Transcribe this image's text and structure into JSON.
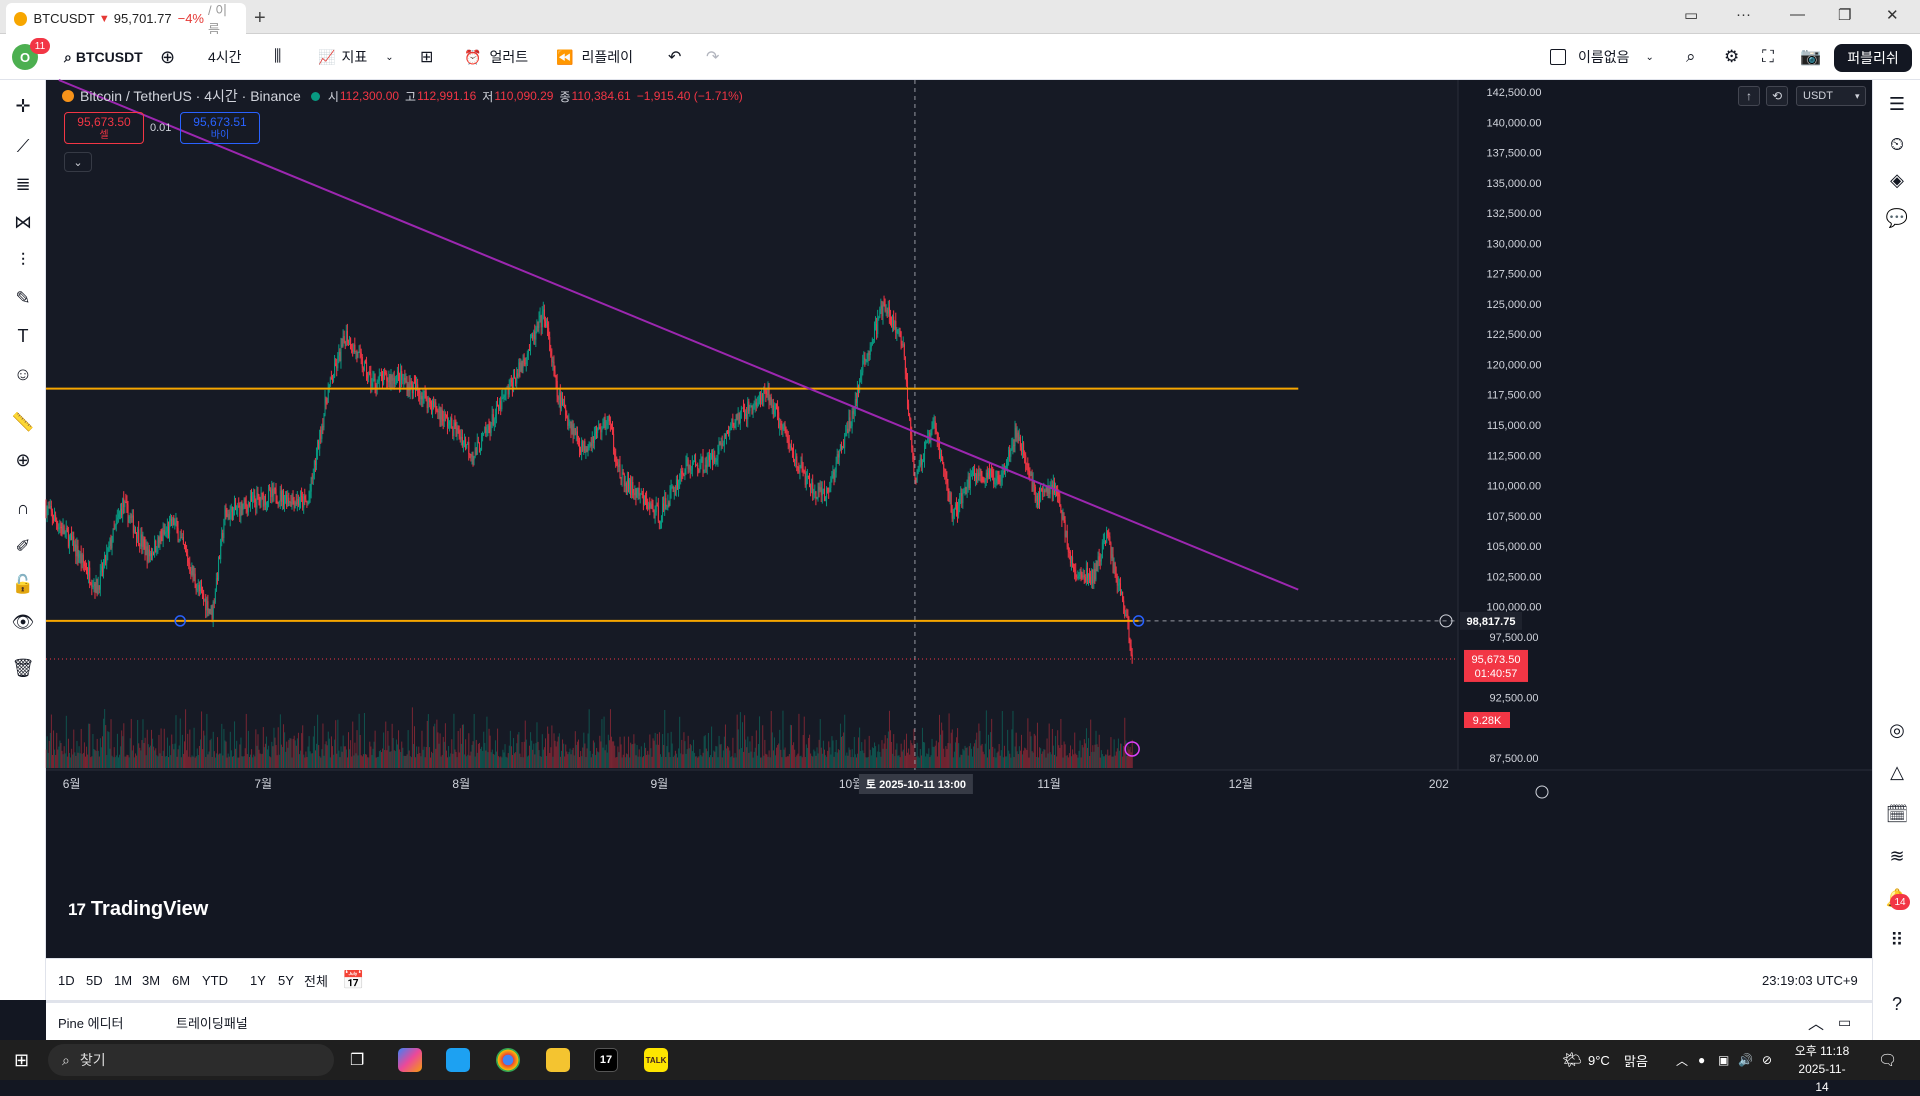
{
  "browser_tab": {
    "symbol": "BTCUSDT",
    "price": "95,701.77",
    "change": "−4%",
    "rest": "/ 이름"
  },
  "toolbar": {
    "notifications_count": "11",
    "symbol": "BTCUSDT",
    "interval": "4시간",
    "indicators_label": "지표",
    "alerts_label": "얼러트",
    "replay_label": "리플레이",
    "layout_name": "이름없음",
    "publish_label": "퍼블리쉬"
  },
  "legend": {
    "title": "Bitcoin / TetherUS · 4시간 · Binance",
    "open_label": "시",
    "open": "112,300.00",
    "high_label": "고",
    "high": "112,991.16",
    "low_label": "저",
    "low": "110,090.29",
    "close_label": "종",
    "close": "110,384.61",
    "change": "−1,915.40 (−1.71%)"
  },
  "trade": {
    "sell_price": "95,673.50",
    "sell_label": "셀",
    "spread": "0.01",
    "buy_price": "95,673.51",
    "buy_label": "바이"
  },
  "currency": "USDT",
  "price_axis": {
    "ticks": [
      "142,500.00",
      "140,000.00",
      "137,500.00",
      "135,000.00",
      "132,500.00",
      "130,000.00",
      "127,500.00",
      "125,000.00",
      "122,500.00",
      "120,000.00",
      "117,500.00",
      "115,000.00",
      "112,500.00",
      "110,000.00",
      "107,500.00",
      "105,000.00",
      "102,500.00",
      "100,000.00",
      "97,500.00",
      "92,500.00",
      "87,500.00"
    ],
    "hline_label": "98,817.75",
    "last_price": "95,673.50",
    "countdown": "01:40:57",
    "volume_label": "9.28K"
  },
  "time_axis": {
    "ticks": [
      "6월",
      "7월",
      "8월",
      "9월",
      "10월",
      "11월",
      "12월",
      "202"
    ],
    "crosshair_label": "토 2025-10-11  13:00"
  },
  "chart_data": {
    "type": "candlestick",
    "symbol": "BTCUSDT",
    "interval": "4H",
    "ylim": [
      86500,
      143500
    ],
    "x_range": [
      "2025-05-28",
      "2026-01-04"
    ],
    "horizontal_lines": [
      118000,
      98817.75
    ],
    "trendline": [
      {
        "x": "2025-05-30",
        "y": 143500
      },
      {
        "x": "2025-12-10",
        "y": 101400
      }
    ],
    "crosshair_x": "2025-10-11 13:00",
    "last_price": 95673.5,
    "path": [
      [
        "2025-05-28",
        108200
      ],
      [
        "2025-06-01",
        105300
      ],
      [
        "2025-06-05",
        101500
      ],
      [
        "2025-06-09",
        108500
      ],
      [
        "2025-06-13",
        104200
      ],
      [
        "2025-06-17",
        107000
      ],
      [
        "2025-06-21",
        101200
      ],
      [
        "2025-06-23",
        99500
      ],
      [
        "2025-06-25",
        107500
      ],
      [
        "2025-06-30",
        108800
      ],
      [
        "2025-07-03",
        109200
      ],
      [
        "2025-07-08",
        108500
      ],
      [
        "2025-07-11",
        117500
      ],
      [
        "2025-07-14",
        122500
      ],
      [
        "2025-07-18",
        118500
      ],
      [
        "2025-07-22",
        119000
      ],
      [
        "2025-07-26",
        117500
      ],
      [
        "2025-08-01",
        114000
      ],
      [
        "2025-08-03",
        112500
      ],
      [
        "2025-08-07",
        116500
      ],
      [
        "2025-08-10",
        119500
      ],
      [
        "2025-08-14",
        124200
      ],
      [
        "2025-08-16",
        117500
      ],
      [
        "2025-08-20",
        113000
      ],
      [
        "2025-08-24",
        115500
      ],
      [
        "2025-08-26",
        110500
      ],
      [
        "2025-09-01",
        107500
      ],
      [
        "2025-09-05",
        111500
      ],
      [
        "2025-09-09",
        112000
      ],
      [
        "2025-09-13",
        115500
      ],
      [
        "2025-09-18",
        117500
      ],
      [
        "2025-09-22",
        112500
      ],
      [
        "2025-09-25",
        109500
      ],
      [
        "2025-09-27",
        109000
      ],
      [
        "2025-10-01",
        115500
      ],
      [
        "2025-10-03",
        120000
      ],
      [
        "2025-10-06",
        124800
      ],
      [
        "2025-10-09",
        122000
      ],
      [
        "2025-10-10",
        116500
      ],
      [
        "2025-10-11",
        110500
      ],
      [
        "2025-10-14",
        115000
      ],
      [
        "2025-10-17",
        107500
      ],
      [
        "2025-10-20",
        111000
      ],
      [
        "2025-10-24",
        110500
      ],
      [
        "2025-10-27",
        114500
      ],
      [
        "2025-10-30",
        109000
      ],
      [
        "2025-11-02",
        110000
      ],
      [
        "2025-11-05",
        102500
      ],
      [
        "2025-11-08",
        102500
      ],
      [
        "2025-11-10",
        106000
      ],
      [
        "2025-11-12",
        101500
      ],
      [
        "2025-11-13",
        99500
      ],
      [
        "2025-11-14",
        95700
      ]
    ]
  },
  "periods": [
    "1D",
    "5D",
    "1M",
    "3M",
    "6M",
    "YTD",
    "1Y",
    "5Y",
    "전체"
  ],
  "status_time": "23:19:03 UTC+9",
  "panels": [
    "Pine 에디터",
    "트레이딩패널"
  ],
  "right_badge": "14",
  "taskbar": {
    "search_placeholder": "찾기",
    "weather_temp": "9°C",
    "weather_text": "맑음",
    "time": "오후 11:18",
    "date": "2025-11-14"
  },
  "colors": {
    "up": "#089981",
    "down": "#f23645",
    "hline": "#f7a600",
    "trendline": "#9c27b0",
    "background": "#161a25"
  }
}
